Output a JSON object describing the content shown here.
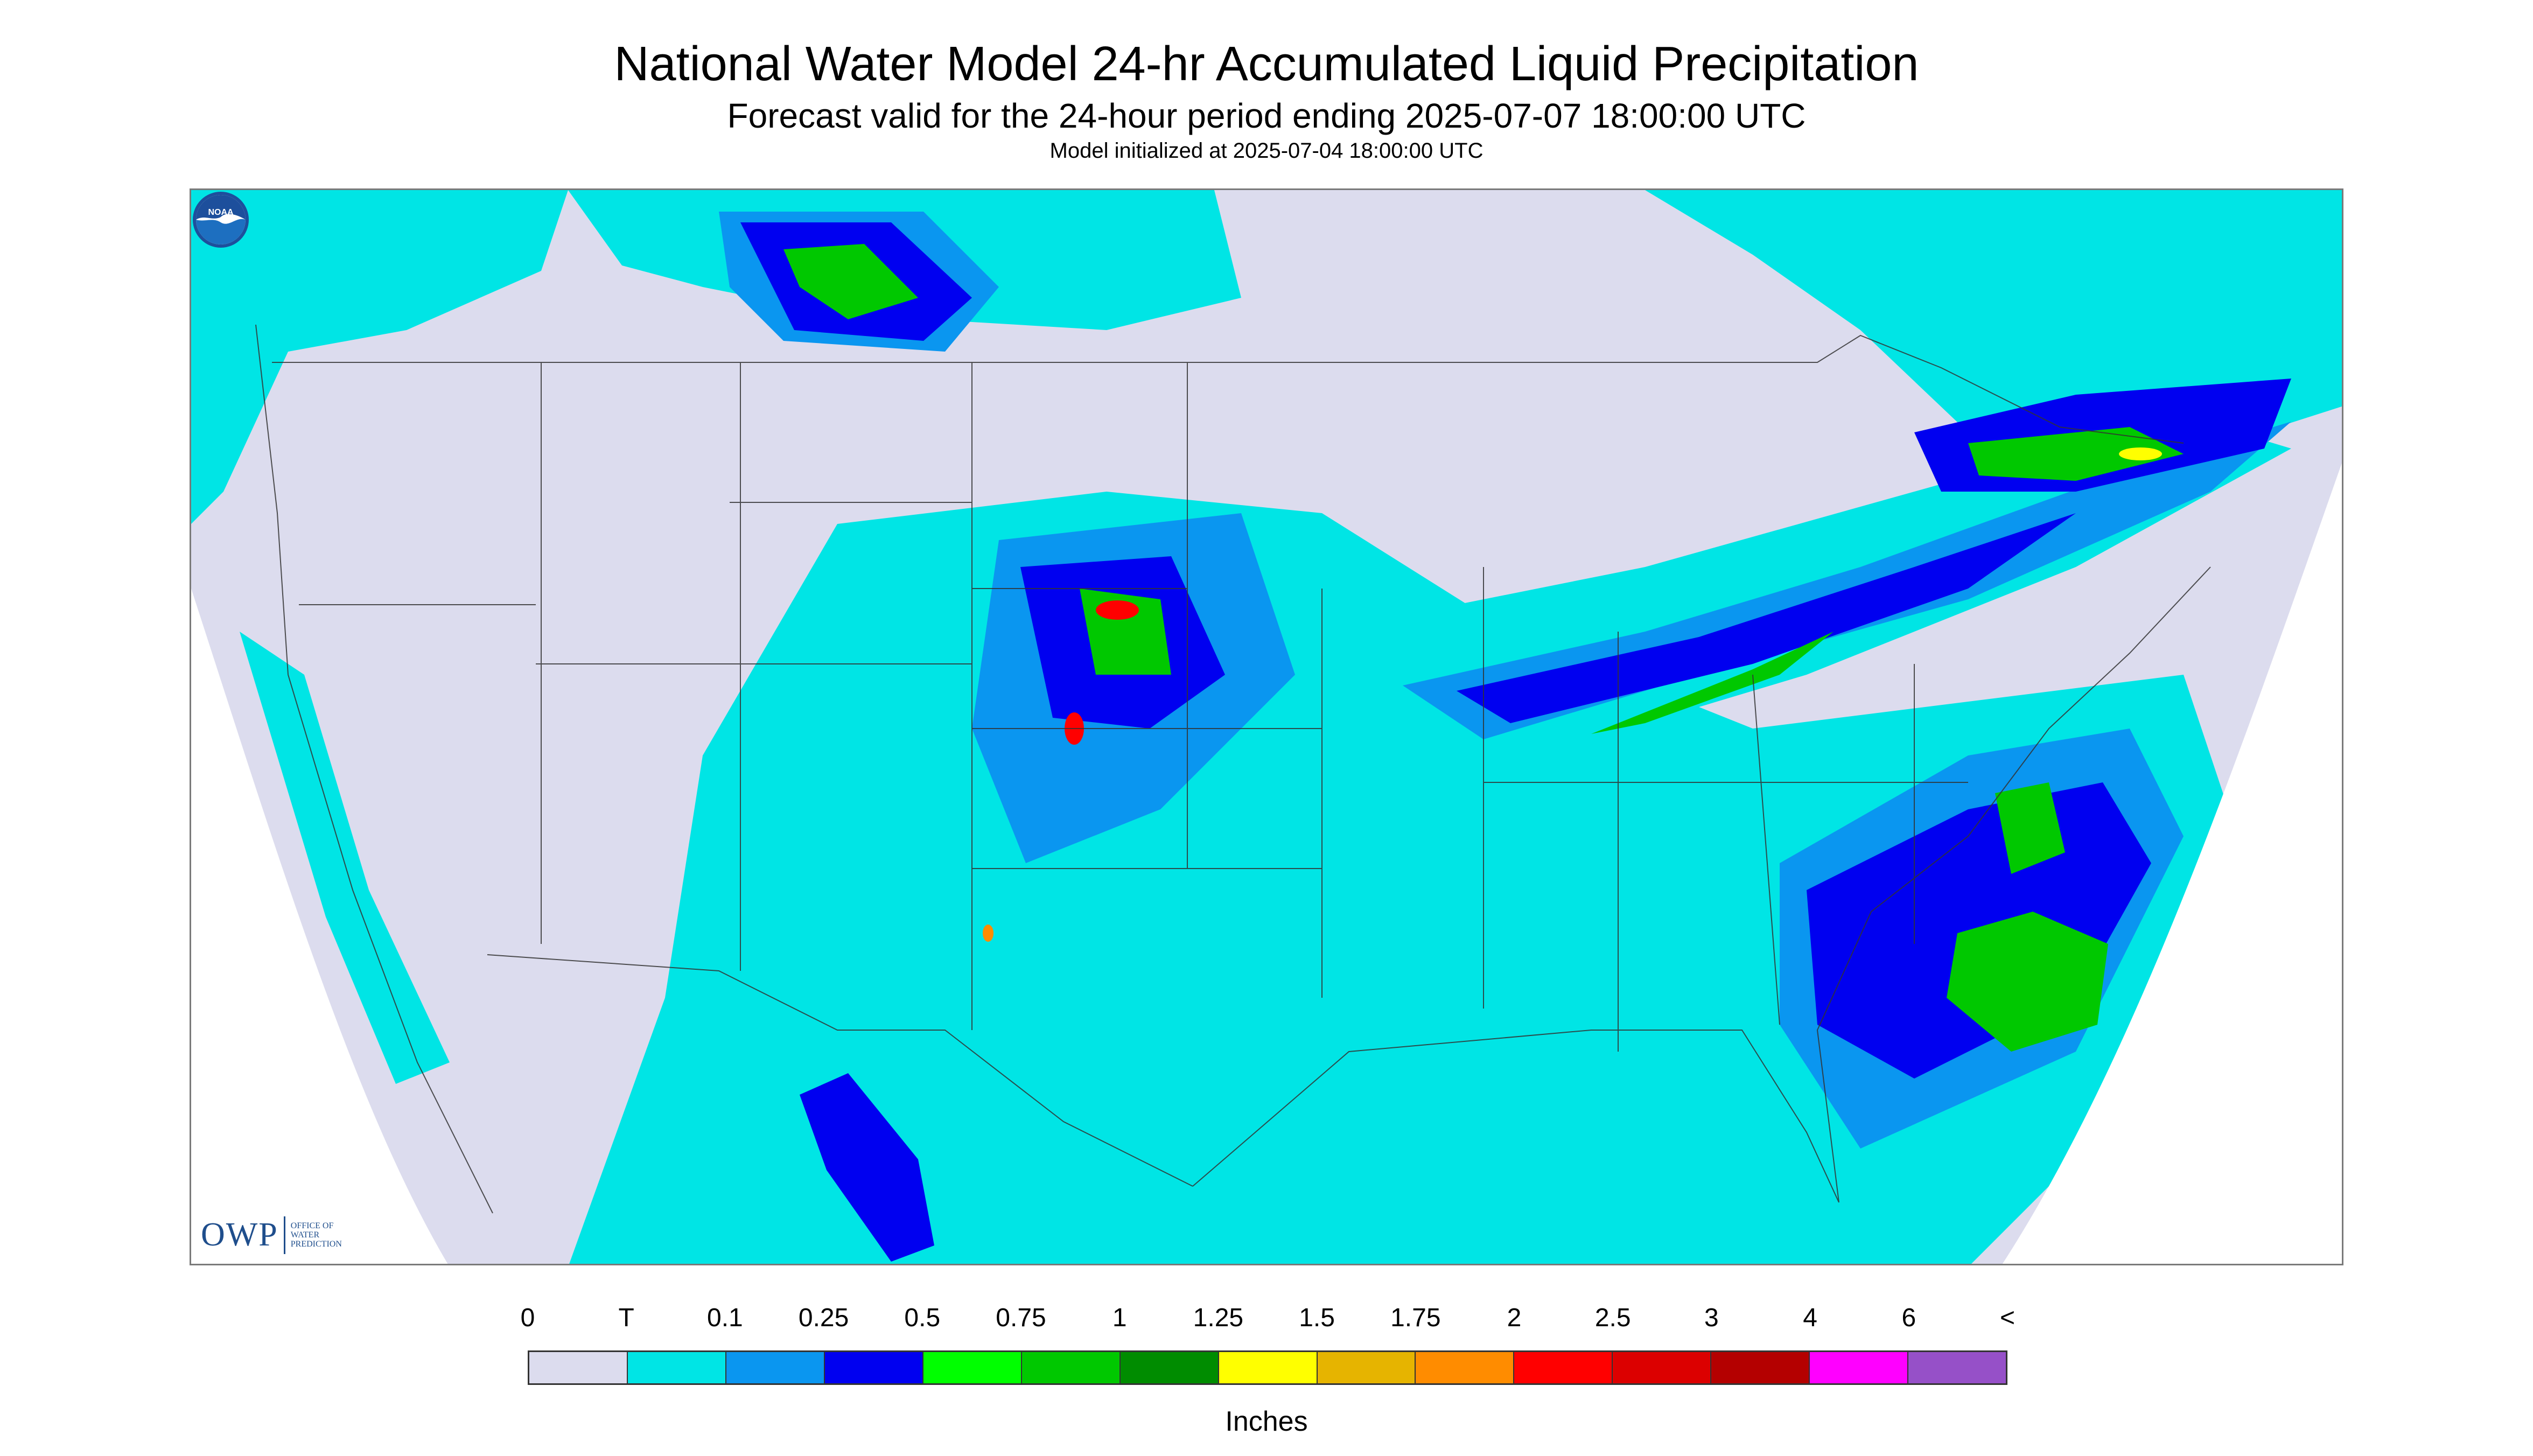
{
  "header": {
    "title": "National Water Model 24-hr Accumulated Liquid Precipitation",
    "subtitle": "Forecast valid for the 24-hour period ending 2025-07-07 18:00:00 UTC",
    "init_line": "Model initialized at 2025-07-04 18:00:00 UTC"
  },
  "logos": {
    "owp_mark": "OWP",
    "owp_text": "OFFICE OF\nWATER\nPREDICTION",
    "noaa_text": "NOAA"
  },
  "legend": {
    "labels": [
      "0",
      "T",
      "0.1",
      "0.25",
      "0.5",
      "0.75",
      "1",
      "1.25",
      "1.5",
      "1.75",
      "2",
      "2.5",
      "3",
      "4",
      "6",
      "<"
    ],
    "colors": [
      "#dcdcee",
      "#00e5e5",
      "#0a96f0",
      "#0000f0",
      "#00ff00",
      "#00c800",
      "#008c00",
      "#ffff00",
      "#e6b400",
      "#ff8c00",
      "#ff0000",
      "#dc0000",
      "#b40000",
      "#ff00ff",
      "#9650c8"
    ],
    "units": "Inches"
  },
  "map": {
    "no_data_color": "#ffffff",
    "border_color": "#333333"
  }
}
